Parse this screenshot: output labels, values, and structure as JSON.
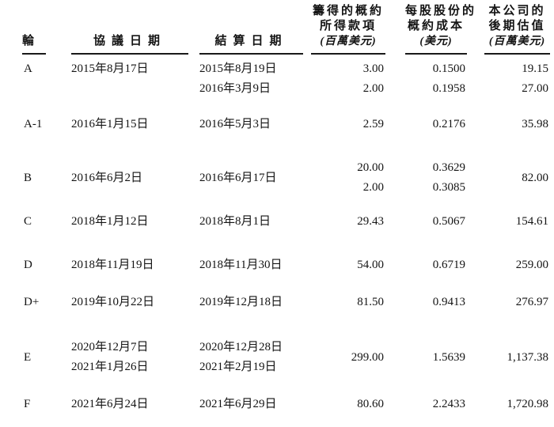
{
  "table": {
    "header": {
      "round": "輪",
      "agreement": "協議日期",
      "settlement": "結算日期",
      "proceeds": [
        "籌得的概約",
        "所得款項",
        "(百萬美元)"
      ],
      "cost": [
        "每股股份的",
        "概約成本",
        "(美元)"
      ],
      "valuation": [
        "本公司的",
        "後期估值",
        "(百萬美元)"
      ]
    },
    "rows": [
      {
        "round": "A",
        "agreement": [
          "2015年8月17日"
        ],
        "settlement": [
          "2015年8月19日",
          "2016年3月9日"
        ],
        "proceeds": [
          "3.00",
          "2.00"
        ],
        "cost": [
          "0.1500",
          "0.1958"
        ],
        "valuation": [
          "19.15",
          "27.00"
        ],
        "valign": "top"
      },
      {
        "round": "A-1",
        "agreement": [
          "2016年1月15日"
        ],
        "settlement": [
          "2016年5月3日"
        ],
        "proceeds": [
          "2.59"
        ],
        "cost": [
          "0.2176"
        ],
        "valuation": [
          "35.98"
        ],
        "valign": "top"
      },
      {
        "round": "B",
        "agreement": [
          "2016年6月2日"
        ],
        "settlement": [
          "2016年6月17日"
        ],
        "proceeds": [
          "20.00",
          "2.00"
        ],
        "cost": [
          "0.3629",
          "0.3085"
        ],
        "valuation": [
          "82.00"
        ],
        "valign": "center"
      },
      {
        "round": "C",
        "agreement": [
          "2018年1月12日"
        ],
        "settlement": [
          "2018年8月1日"
        ],
        "proceeds": [
          "29.43"
        ],
        "cost": [
          "0.5067"
        ],
        "valuation": [
          "154.61"
        ],
        "valign": "top"
      },
      {
        "round": "D",
        "agreement": [
          "2018年11月19日"
        ],
        "settlement": [
          "2018年11月30日"
        ],
        "proceeds": [
          "54.00"
        ],
        "cost": [
          "0.6719"
        ],
        "valuation": [
          "259.00"
        ],
        "valign": "top"
      },
      {
        "round": "D+",
        "agreement": [
          "2019年10月22日"
        ],
        "settlement": [
          "2019年12月18日"
        ],
        "proceeds": [
          "81.50"
        ],
        "cost": [
          "0.9413"
        ],
        "valuation": [
          "276.97"
        ],
        "valign": "top"
      },
      {
        "round": "E",
        "agreement": [
          "2020年12月7日",
          "2021年1月26日"
        ],
        "settlement": [
          "2020年12月28日",
          "2021年2月19日"
        ],
        "proceeds": [
          "299.00"
        ],
        "cost": [
          "1.5639"
        ],
        "valuation": [
          "1,137.38"
        ],
        "valign": "center"
      },
      {
        "round": "F",
        "agreement": [
          "2021年6月24日"
        ],
        "settlement": [
          "2021年6月29日"
        ],
        "proceeds": [
          "80.60"
        ],
        "cost": [
          "2.2433"
        ],
        "valuation": [
          "1,720.98"
        ],
        "valign": "top"
      }
    ]
  }
}
